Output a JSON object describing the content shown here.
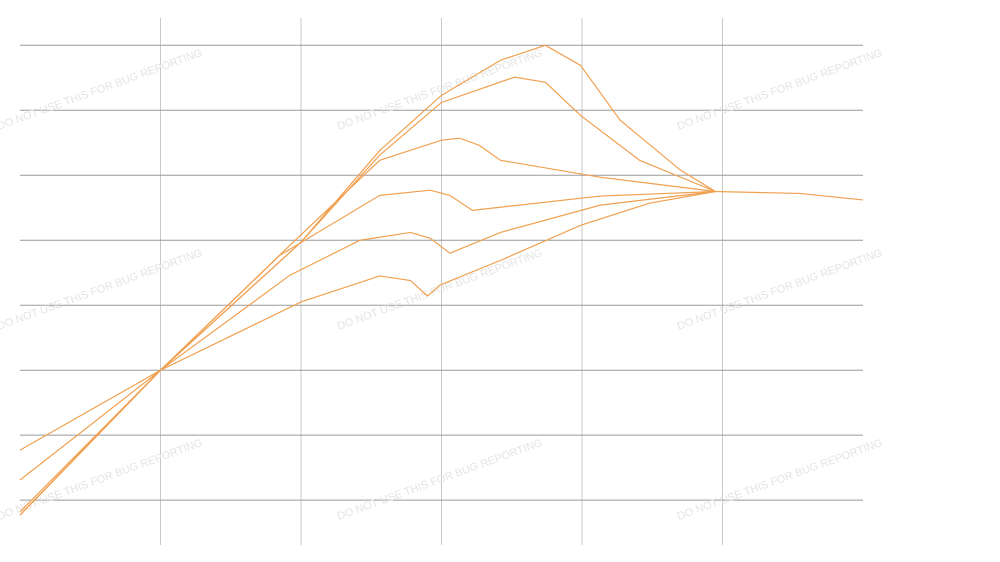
{
  "chart_data": {
    "type": "line",
    "watermark": "DO NOT USE THIS FOR BUG REPORTING",
    "xlim": [
      0,
      6
    ],
    "xticks": [
      1,
      2,
      3,
      4,
      5
    ],
    "ylim": [
      -0.69,
      7.42
    ],
    "yticks": [
      0,
      1,
      2,
      3,
      4,
      5,
      6,
      7
    ],
    "grid": true,
    "series": [
      {
        "color": "#f0a050",
        "x": [
          0,
          1.0,
          2.0,
          2.56,
          3.0,
          3.42,
          3.74,
          3.99,
          4.27,
          4.7,
          4.95,
          5.55,
          6.0
        ],
        "values": [
          -0.23,
          2.0,
          3.97,
          5.38,
          6.23,
          6.77,
          7.0,
          6.69,
          5.85,
          5.08,
          4.75,
          4.72,
          4.62
        ]
      },
      {
        "color": "#f0a050",
        "x": [
          0,
          1.0,
          2.0,
          2.56,
          3.0,
          3.52,
          3.74,
          3.99,
          4.41,
          4.95
        ],
        "values": [
          -0.23,
          2.0,
          3.97,
          5.31,
          6.12,
          6.51,
          6.43,
          5.92,
          5.23,
          4.75
        ]
      },
      {
        "color": "#f0a050",
        "x": [
          0,
          1.0,
          1.92,
          2.56,
          3.0,
          3.13,
          3.27,
          3.42,
          4.13,
          4.95
        ],
        "values": [
          0.31,
          2.0,
          3.92,
          5.23,
          5.54,
          5.57,
          5.46,
          5.23,
          4.97,
          4.75
        ]
      },
      {
        "color": "#f0a050",
        "x": [
          0,
          1.0,
          1.85,
          2.56,
          2.92,
          3.06,
          3.22,
          4.13,
          4.95
        ],
        "values": [
          0.77,
          2.0,
          3.77,
          4.69,
          4.77,
          4.69,
          4.46,
          4.68,
          4.75
        ]
      },
      {
        "color": "#f0a050",
        "x": [
          0,
          1.0,
          1.92,
          2.42,
          2.78,
          2.92,
          3.06,
          3.42,
          4.13,
          4.95
        ],
        "values": [
          -0.18,
          2.0,
          3.46,
          4.0,
          4.12,
          4.03,
          3.8,
          4.12,
          4.54,
          4.75
        ]
      },
      {
        "color": "#f0a050",
        "x": [
          0,
          1.0,
          2.0,
          2.56,
          2.78,
          2.9,
          2.99,
          3.42,
          3.99,
          4.48,
          4.95
        ],
        "values": [
          -0.23,
          2.0,
          3.05,
          3.45,
          3.38,
          3.14,
          3.31,
          3.69,
          4.23,
          4.57,
          4.75
        ]
      }
    ]
  }
}
